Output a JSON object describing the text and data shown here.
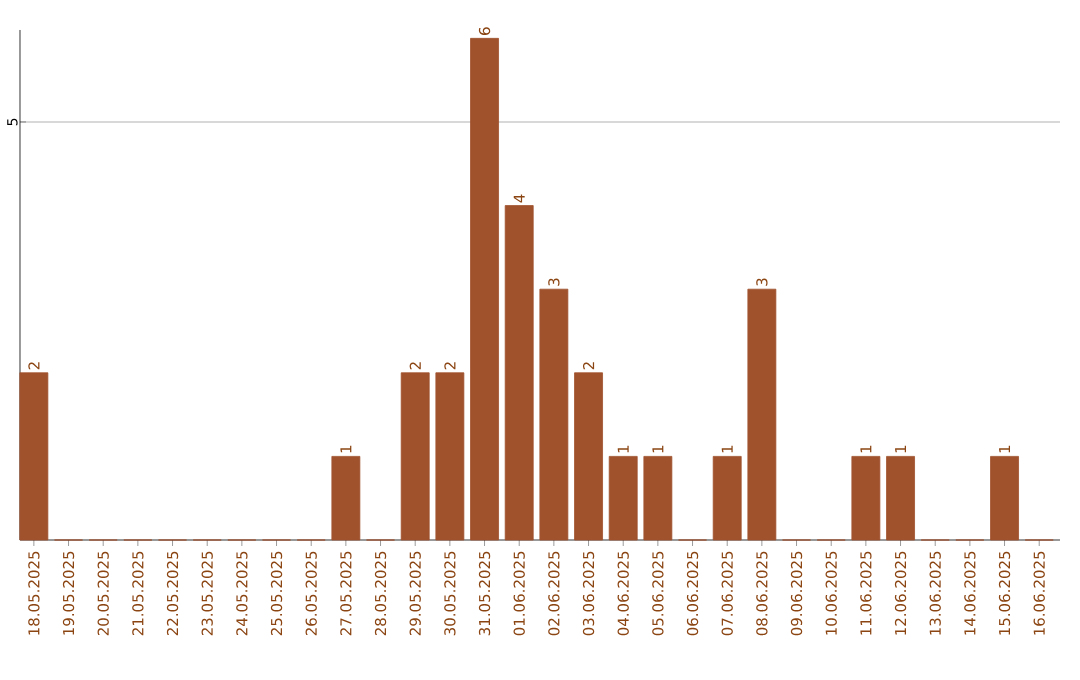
{
  "chart_data": {
    "type": "bar",
    "categories": [
      "18.05.2025",
      "19.05.2025",
      "20.05.2025",
      "21.05.2025",
      "22.05.2025",
      "23.05.2025",
      "24.05.2025",
      "25.05.2025",
      "26.05.2025",
      "27.05.2025",
      "28.05.2025",
      "29.05.2025",
      "30.05.2025",
      "31.05.2025",
      "01.06.2025",
      "02.06.2025",
      "03.06.2025",
      "04.06.2025",
      "05.06.2025",
      "06.06.2025",
      "07.06.2025",
      "08.06.2025",
      "09.06.2025",
      "10.06.2025",
      "11.06.2025",
      "12.06.2025",
      "13.06.2025",
      "14.06.2025",
      "15.06.2025",
      "16.06.2025"
    ],
    "values": [
      2,
      0,
      0,
      0,
      0,
      0,
      0,
      0,
      0,
      1,
      0,
      2,
      2,
      6,
      4,
      3,
      2,
      1,
      1,
      0,
      1,
      3,
      0,
      0,
      1,
      1,
      0,
      0,
      1,
      0
    ],
    "value_labels": [
      "2",
      null,
      null,
      null,
      null,
      null,
      null,
      null,
      null,
      "1",
      null,
      "2",
      "2",
      "6",
      "4",
      "3",
      "2",
      "1",
      "1",
      null,
      "1",
      "3",
      null,
      null,
      "1",
      "1",
      null,
      null,
      "1",
      null
    ],
    "color": "#a0522d",
    "ylim": [
      0,
      6.1
    ],
    "yticks": [
      5
    ],
    "grid": "y"
  }
}
